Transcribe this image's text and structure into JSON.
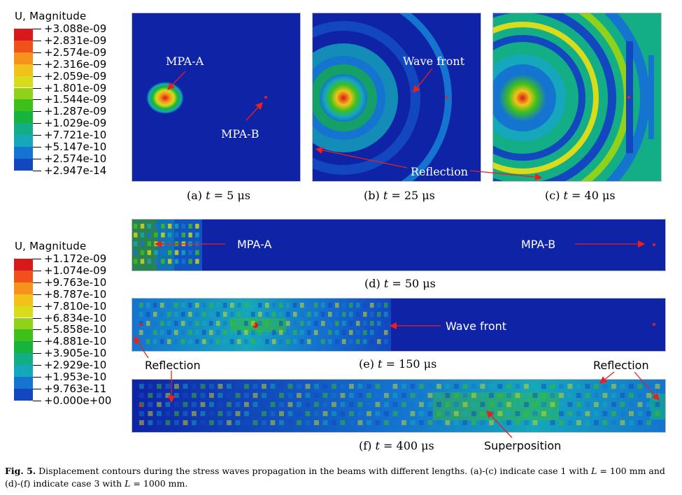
{
  "legend_top": {
    "title": "U, Magnitude",
    "labels": [
      "+3.088e-09",
      "+2.831e-09",
      "+2.574e-09",
      "+2.316e-09",
      "+2.059e-09",
      "+1.801e-09",
      "+1.544e-09",
      "+1.287e-09",
      "+1.029e-09",
      "+7.721e-10",
      "+5.147e-10",
      "+2.574e-10",
      "+2.947e-14"
    ]
  },
  "legend_bottom": {
    "title": "U, Magnitude",
    "labels": [
      "+1.172e-09",
      "+1.074e-09",
      "+9.763e-10",
      "+8.787e-10",
      "+7.810e-10",
      "+6.834e-10",
      "+5.858e-10",
      "+4.881e-10",
      "+3.905e-10",
      "+2.929e-10",
      "+1.953e-10",
      "+9.763e-11",
      "+0.000e+00"
    ]
  },
  "legend_colors": [
    "#d7191c",
    "#f0501a",
    "#f6931c",
    "#f2c21a",
    "#d8dc1a",
    "#8fd11b",
    "#3ec01b",
    "#16b43c",
    "#14ae86",
    "#15a7bb",
    "#1474d0",
    "#1247c0",
    "#0e23a6"
  ],
  "annotations": {
    "mpa_a": "MPA-A",
    "mpa_b": "MPA-B",
    "wave_front": "Wave front",
    "reflection": "Reflection",
    "superposition": "Superposition"
  },
  "captions": {
    "a": {
      "prefix": "(a) ",
      "var": "t",
      "suffix": " = 5 μs"
    },
    "b": {
      "prefix": "(b) ",
      "var": "t",
      "suffix": " = 25 μs"
    },
    "c": {
      "prefix": "(c) ",
      "var": "t",
      "suffix": " = 40 μs"
    },
    "d": {
      "prefix": "(d) ",
      "var": "t",
      "suffix": " = 50 μs"
    },
    "e": {
      "prefix": "(e) ",
      "var": "t",
      "suffix": " = 150 μs"
    },
    "f": {
      "prefix": "(f) ",
      "var": "t",
      "suffix": " = 400 μs"
    }
  },
  "figure_caption": {
    "label": "Fig. 5.",
    "part1": " Displacement contours during the stress waves propagation in the beams with different lengths. (a)-(c) indicate case 1 with ",
    "var1": "L",
    "part2": " = 100 mm and (d)-(f) indicate case 3 with ",
    "var2": "L",
    "part3": " = 1000 mm."
  },
  "colors": {
    "background_field": "#0e23a6",
    "marker_red": "#e82020"
  }
}
